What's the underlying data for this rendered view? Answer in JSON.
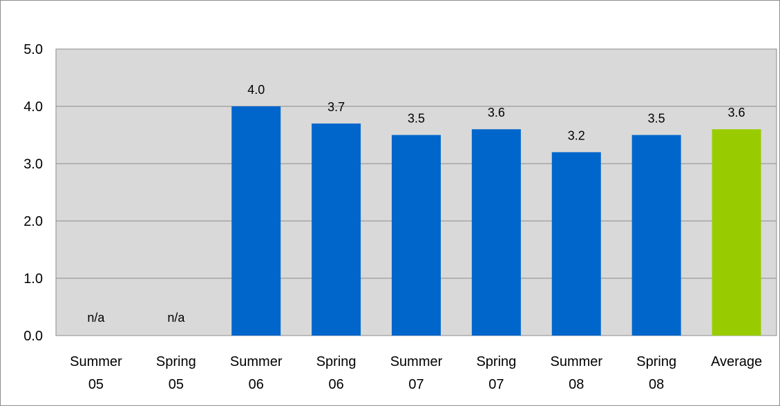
{
  "chart_data": {
    "type": "bar",
    "categories": [
      [
        "Summer",
        "05"
      ],
      [
        "Spring",
        "05"
      ],
      [
        "Summer",
        "06"
      ],
      [
        "Spring",
        "06"
      ],
      [
        "Summer",
        "07"
      ],
      [
        "Spring",
        "07"
      ],
      [
        "Summer",
        "08"
      ],
      [
        "Spring",
        "08"
      ],
      [
        "Average"
      ]
    ],
    "values": [
      null,
      null,
      4.0,
      3.7,
      3.5,
      3.6,
      3.2,
      3.5,
      3.6
    ],
    "data_labels": [
      "n/a",
      "n/a",
      "4.0",
      "3.7",
      "3.5",
      "3.6",
      "3.2",
      "3.5",
      "3.6"
    ],
    "ylim": [
      0,
      5
    ],
    "yticks": [
      "0.0",
      "1.0",
      "2.0",
      "3.0",
      "4.0",
      "5.0"
    ],
    "grid": true,
    "legend": "none",
    "colors": {
      "bar": "#0066cc",
      "average_bar": "#99cc00",
      "plot_background": "#d9d9d9",
      "gridline": "#8c8c8c"
    },
    "bar_colors": [
      "#0066cc",
      "#0066cc",
      "#0066cc",
      "#0066cc",
      "#0066cc",
      "#0066cc",
      "#0066cc",
      "#0066cc",
      "#99cc00"
    ]
  }
}
